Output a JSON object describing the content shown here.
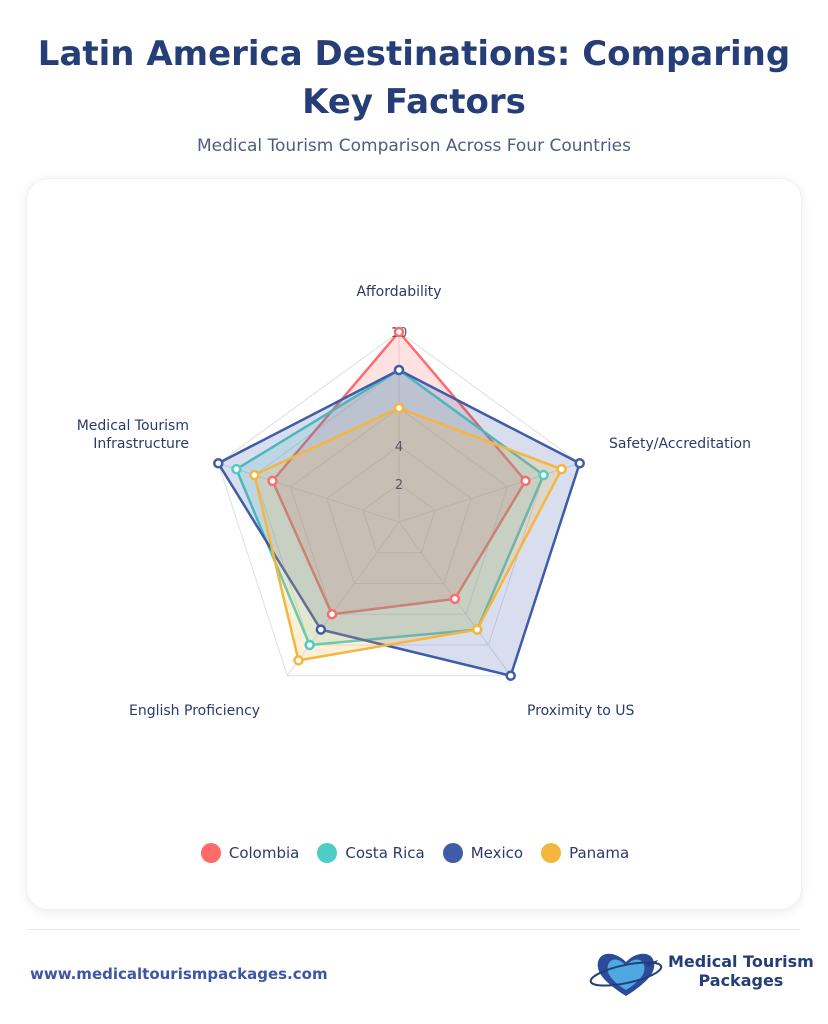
{
  "header": {
    "title": "Latin America Destinations: Comparing Key Factors",
    "subtitle": "Medical Tourism Comparison Across Four Countries"
  },
  "chart_data": {
    "type": "radar",
    "title": "Latin America Destinations: Comparing Key Factors",
    "subtitle": "Medical Tourism Comparison Across Four Countries",
    "axes": [
      "Affordability",
      "Safety/Accreditation",
      "Proximity to US",
      "English Proficiency",
      "Medical Tourism Infrastructure"
    ],
    "axis_labels": {
      "affordability": "Affordability",
      "safety": "Safety/Accreditation",
      "proximity": "Proximity to US",
      "english": "English Proficiency",
      "infra_line1": "Medical Tourism",
      "infra_line2": "Infrastructure"
    },
    "range": [
      0,
      10
    ],
    "ticks": [
      "2",
      "4",
      "6",
      "8",
      "10"
    ],
    "series": [
      {
        "name": "Colombia",
        "color": "#ff6b6b",
        "values": [
          10,
          7,
          5,
          6,
          7
        ]
      },
      {
        "name": "Costa Rica",
        "color": "#4ecdc4",
        "values": [
          8,
          8,
          7,
          8,
          9
        ]
      },
      {
        "name": "Mexico",
        "color": "#3f5ca8",
        "values": [
          8,
          10,
          10,
          7,
          10
        ]
      },
      {
        "name": "Panama",
        "color": "#f4b63f",
        "values": [
          6,
          9,
          7,
          9,
          8
        ]
      }
    ],
    "legend_position": "bottom"
  },
  "footer": {
    "url": "www.medicaltourismpackages.com",
    "logo_line1": "Medical Tourism",
    "logo_line2": "Packages",
    "logo_icon": "heart-globe-plane-icon"
  }
}
